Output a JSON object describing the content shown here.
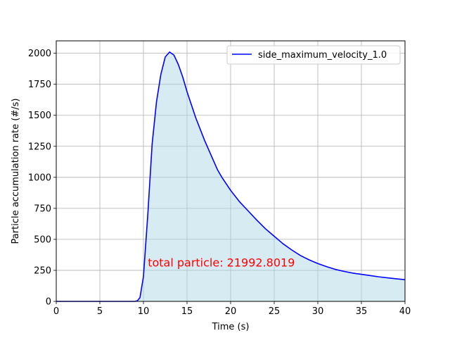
{
  "chart_data": {
    "type": "area",
    "title": "",
    "xlabel": "Time (s)",
    "ylabel": "Particle accumulation rate (#/s)",
    "xlim": [
      0,
      40
    ],
    "ylim": [
      0,
      2100
    ],
    "xticks": [
      0,
      5,
      10,
      15,
      20,
      25,
      30,
      35,
      40
    ],
    "yticks": [
      0,
      250,
      500,
      750,
      1000,
      1250,
      1500,
      1750,
      2000
    ],
    "grid": true,
    "legend_position": "top-right",
    "series": [
      {
        "name": "side_maximum_velocity_1.0",
        "color": "#0000ff",
        "fill_color": "#add8e6",
        "x": [
          0,
          9,
          9.3,
          9.6,
          10,
          10.5,
          11,
          11.5,
          12,
          12.5,
          13,
          13.5,
          14,
          14.5,
          15,
          16,
          17,
          18,
          18.5,
          19,
          20,
          21,
          22,
          23,
          24,
          25,
          26,
          27,
          28,
          29,
          30,
          31,
          32,
          33,
          34,
          35,
          36,
          37,
          38,
          39,
          40
        ],
        "y": [
          0,
          0,
          5,
          30,
          200,
          700,
          1270,
          1610,
          1830,
          1970,
          2010,
          1985,
          1910,
          1810,
          1690,
          1480,
          1300,
          1140,
          1060,
          1000,
          895,
          805,
          730,
          655,
          585,
          525,
          465,
          415,
          370,
          335,
          305,
          280,
          258,
          242,
          228,
          218,
          208,
          198,
          190,
          182,
          175
        ]
      }
    ],
    "annotation": {
      "text": "total particle: 21992.8019",
      "color": "#ff0000",
      "x": 10.5,
      "y": 310
    }
  }
}
